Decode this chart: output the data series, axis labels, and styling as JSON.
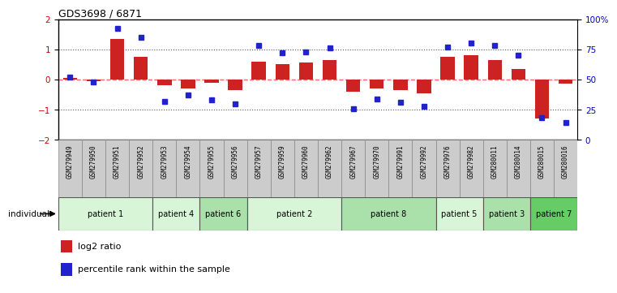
{
  "title": "GDS3698 / 6871",
  "samples": [
    "GSM279949",
    "GSM279950",
    "GSM279951",
    "GSM279952",
    "GSM279953",
    "GSM279954",
    "GSM279955",
    "GSM279956",
    "GSM279957",
    "GSM279959",
    "GSM279960",
    "GSM279962",
    "GSM279967",
    "GSM279970",
    "GSM279991",
    "GSM279992",
    "GSM279976",
    "GSM279982",
    "GSM280011",
    "GSM280014",
    "GSM280015",
    "GSM280016"
  ],
  "log2_ratio": [
    0.05,
    -0.05,
    1.35,
    0.75,
    -0.2,
    -0.3,
    -0.1,
    -0.35,
    0.6,
    0.5,
    0.55,
    0.65,
    -0.4,
    -0.3,
    -0.35,
    -0.45,
    0.75,
    0.8,
    0.65,
    0.35,
    -1.3,
    -0.15
  ],
  "percentile": [
    52,
    48,
    92,
    85,
    32,
    37,
    33,
    30,
    78,
    72,
    73,
    76,
    26,
    34,
    31,
    28,
    77,
    80,
    78,
    70,
    18,
    14
  ],
  "patients": [
    {
      "label": "patient 1",
      "start": 0,
      "end": 4,
      "color": "#d8f5d8"
    },
    {
      "label": "patient 4",
      "start": 4,
      "end": 6,
      "color": "#d8f5d8"
    },
    {
      "label": "patient 6",
      "start": 6,
      "end": 8,
      "color": "#aae0aa"
    },
    {
      "label": "patient 2",
      "start": 8,
      "end": 12,
      "color": "#d8f5d8"
    },
    {
      "label": "patient 8",
      "start": 12,
      "end": 16,
      "color": "#aae0aa"
    },
    {
      "label": "patient 5",
      "start": 16,
      "end": 18,
      "color": "#d8f5d8"
    },
    {
      "label": "patient 3",
      "start": 18,
      "end": 20,
      "color": "#aae0aa"
    },
    {
      "label": "patient 7",
      "start": 20,
      "end": 22,
      "color": "#66cc66"
    }
  ],
  "bar_color": "#cc2222",
  "dot_color": "#2222cc",
  "zero_line_color": "#ff6666",
  "dotted_line_color": "#555555",
  "ylim": [
    -2,
    2
  ],
  "y2lim": [
    0,
    100
  ],
  "yticks": [
    -2,
    -1,
    0,
    1,
    2
  ],
  "y2ticks": [
    0,
    25,
    50,
    75,
    100
  ],
  "y2ticklabels": [
    "0",
    "25",
    "50",
    "75",
    "100%"
  ],
  "bar_color_left_tick": "#cc0000",
  "y2label_color": "#0000cc",
  "legend_log2": "log2 ratio",
  "legend_pct": "percentile rank within the sample",
  "tick_bg_color": "#cccccc",
  "tick_border_color": "#888888"
}
